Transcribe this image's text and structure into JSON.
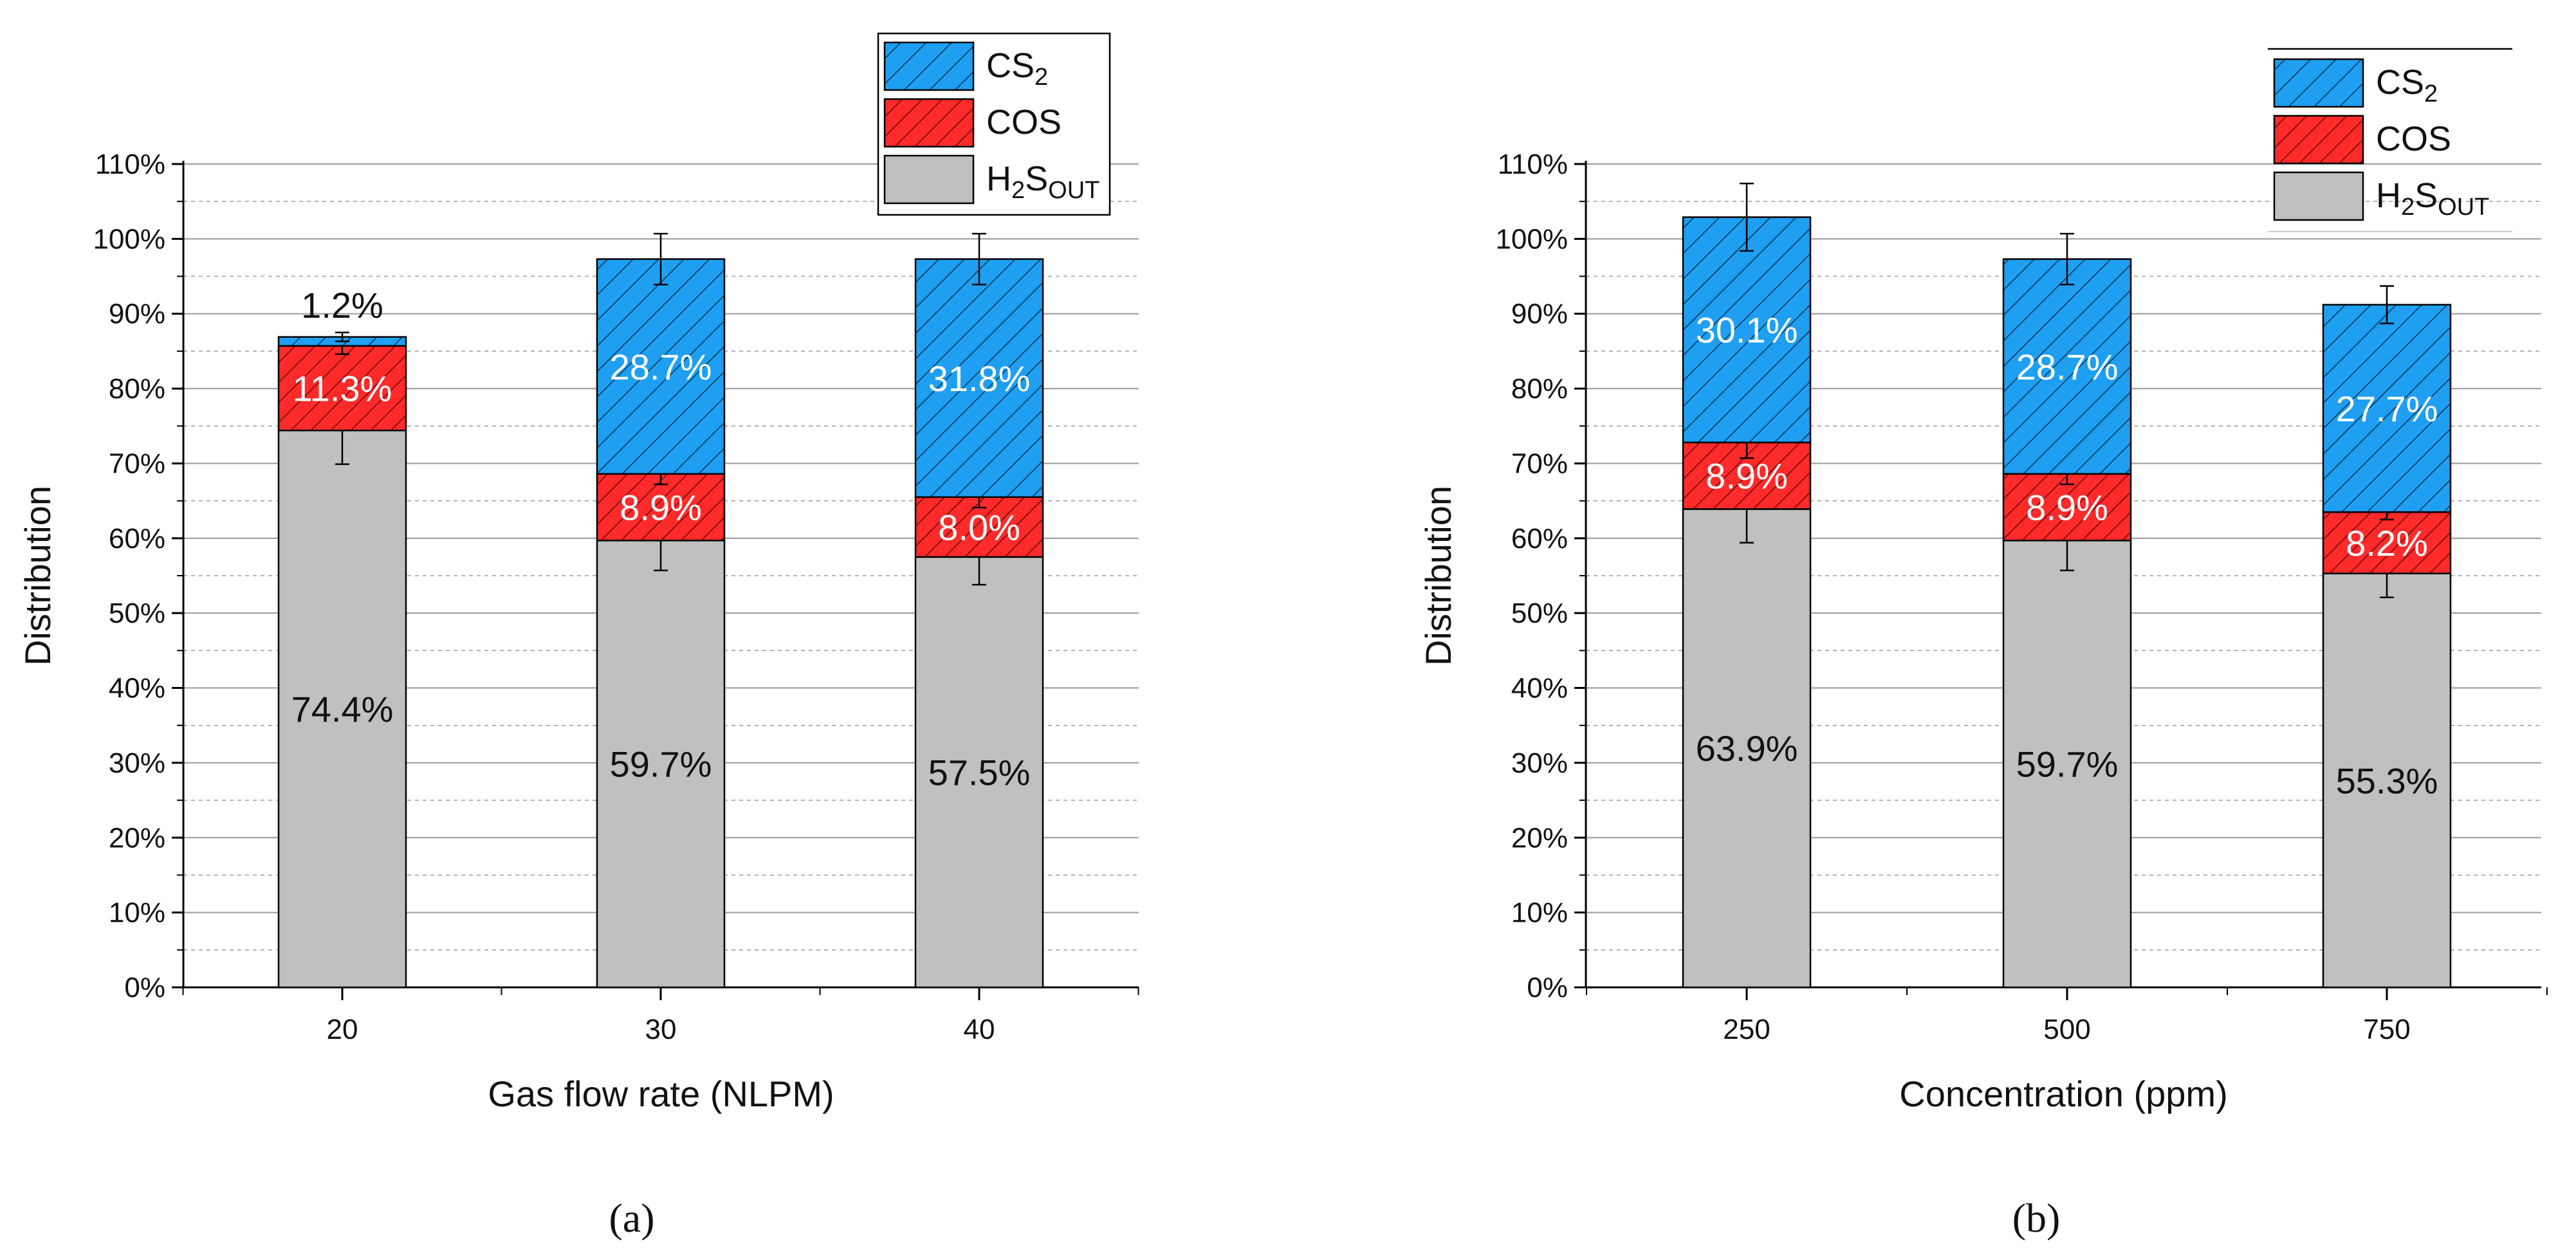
{
  "colors": {
    "CS2": "#1e9ff2",
    "COS": "#ff2a2a",
    "H2S_OUT": "#c0c0c0",
    "grid": "#9a9a9a",
    "axis": "#000000"
  },
  "legend": {
    "cs2": {
      "main": "CS",
      "sub": "2"
    },
    "cos": {
      "main": "COS"
    },
    "h2s": {
      "main": "H",
      "sub1": "2",
      "mid": "S",
      "sub2": "OUT"
    }
  },
  "chart_data": [
    {
      "type": "bar",
      "stacked": true,
      "panel_label": "(a)",
      "xlabel": "Gas flow rate (NLPM)",
      "ylabel": "Distribution",
      "ylim": [
        0,
        110
      ],
      "yticks": [
        "0%",
        "10%",
        "20%",
        "30%",
        "40%",
        "50%",
        "60%",
        "70%",
        "80%",
        "90%",
        "100%",
        "110%"
      ],
      "categories": [
        "20",
        "30",
        "40"
      ],
      "series": [
        {
          "name": "H2S_OUT",
          "values": [
            74.4,
            59.7,
            57.5
          ],
          "labels": [
            "74.4%",
            "59.7%",
            "57.5%"
          ],
          "error": [
            4.5,
            4.0,
            3.7
          ]
        },
        {
          "name": "COS",
          "values": [
            11.3,
            8.9,
            8.0
          ],
          "labels": [
            "11.3%",
            "8.9%",
            "8.0%"
          ],
          "error": [
            1.1,
            1.4,
            1.4
          ]
        },
        {
          "name": "CS2",
          "values": [
            1.2,
            28.7,
            31.8
          ],
          "labels": [
            "1.2%",
            "28.7%",
            "31.8%"
          ],
          "error": [
            0.6,
            3.4,
            3.4
          ]
        }
      ]
    },
    {
      "type": "bar",
      "stacked": true,
      "panel_label": "(b)",
      "xlabel": "Concentration (ppm)",
      "ylabel": "Distribution",
      "ylim": [
        0,
        110
      ],
      "yticks": [
        "0%",
        "10%",
        "20%",
        "30%",
        "40%",
        "50%",
        "60%",
        "70%",
        "80%",
        "90%",
        "100%",
        "110%"
      ],
      "categories": [
        "250",
        "500",
        "750"
      ],
      "series": [
        {
          "name": "H2S_OUT",
          "values": [
            63.9,
            59.7,
            55.3
          ],
          "labels": [
            "63.9%",
            "59.7%",
            "55.3%"
          ],
          "error": [
            4.5,
            4.0,
            3.2
          ]
        },
        {
          "name": "COS",
          "values": [
            8.9,
            8.9,
            8.2
          ],
          "labels": [
            "8.9%",
            "8.9%",
            "8.2%"
          ],
          "error": [
            2.1,
            1.4,
            1.0
          ]
        },
        {
          "name": "CS2",
          "values": [
            30.1,
            28.7,
            27.7
          ],
          "labels": [
            "30.1%",
            "28.7%",
            "27.7%"
          ],
          "error": [
            4.5,
            3.4,
            2.5
          ]
        }
      ]
    }
  ]
}
